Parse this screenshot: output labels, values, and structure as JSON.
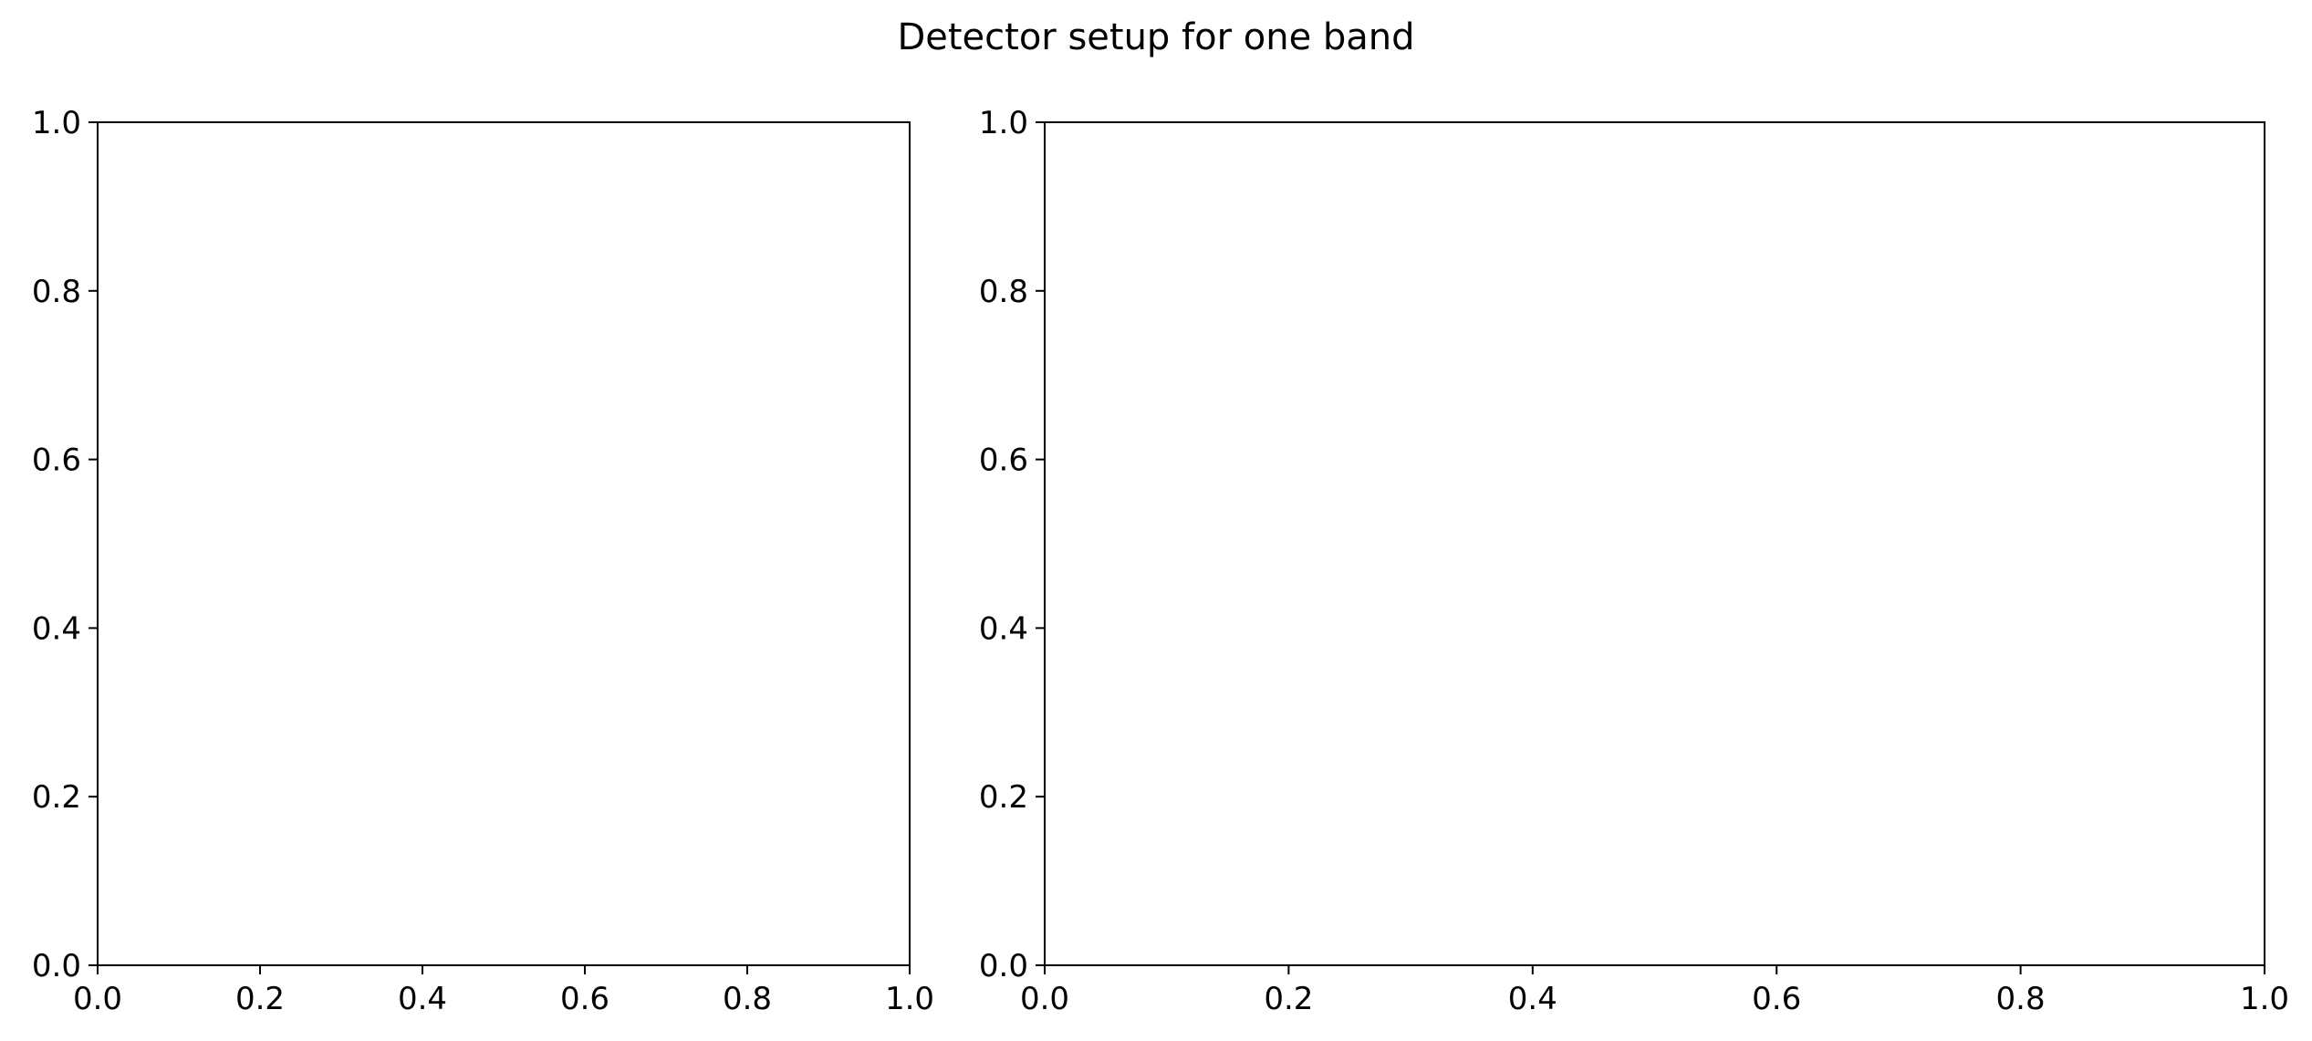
{
  "figure": {
    "suptitle": "Detector setup for one band"
  },
  "chart_data": [
    {
      "type": "scatter",
      "title": "",
      "xlabel": "",
      "ylabel": "",
      "xlim": [
        0.0,
        1.0
      ],
      "ylim": [
        0.0,
        1.0
      ],
      "xticks": [
        "0.0",
        "0.2",
        "0.4",
        "0.6",
        "0.8",
        "1.0"
      ],
      "yticks": [
        "0.0",
        "0.2",
        "0.4",
        "0.6",
        "0.8",
        "1.0"
      ],
      "series": [],
      "grid": false
    },
    {
      "type": "scatter",
      "title": "",
      "xlabel": "",
      "ylabel": "",
      "xlim": [
        0.0,
        1.0
      ],
      "ylim": [
        0.0,
        1.0
      ],
      "xticks": [
        "0.0",
        "0.2",
        "0.4",
        "0.6",
        "0.8",
        "1.0"
      ],
      "yticks": [
        "0.0",
        "0.2",
        "0.4",
        "0.6",
        "0.8",
        "1.0"
      ],
      "series": [],
      "grid": false
    }
  ]
}
